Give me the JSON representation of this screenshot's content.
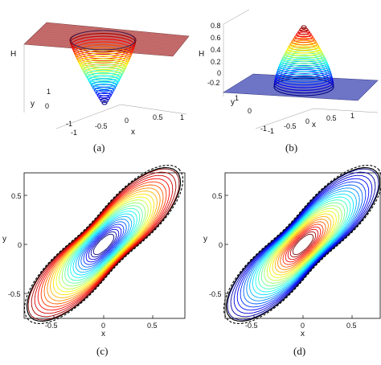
{
  "chart_data": [
    {
      "id": "a",
      "type": "surface",
      "caption": "(a)",
      "xlabel": "x",
      "ylabel": "y",
      "zlabel": "H",
      "x_ticks": [
        "-1",
        "-0.5",
        "0",
        "0.5",
        "1"
      ],
      "y_ticks": [
        "-1",
        "0",
        "1"
      ],
      "xlim": [
        -1,
        1
      ],
      "ylim": [
        -1,
        1
      ],
      "plane_value": 0,
      "well_depth": -0.8,
      "plane_color": "#c56b6b",
      "colormap": "jet"
    },
    {
      "id": "b",
      "type": "surface",
      "caption": "(b)",
      "xlabel": "x",
      "ylabel": "y",
      "zlabel": "H",
      "x_ticks": [
        "-1",
        "-0.5",
        "0",
        "0.5",
        "1"
      ],
      "y_ticks": [
        "-1",
        "0",
        "1"
      ],
      "z_ticks": [
        "-0.2",
        "0",
        "0.2",
        "0.4",
        "0.6",
        "0.8"
      ],
      "zlim": [
        -0.2,
        0.8
      ],
      "plane_value": 0,
      "peak_height": 0.8,
      "plane_color": "#6e74c6",
      "colormap": "jet"
    },
    {
      "id": "c",
      "type": "contour",
      "caption": "(c)",
      "xlabel": "x",
      "ylabel": "y",
      "x_ticks": [
        "-0.5",
        "0",
        "0.5"
      ],
      "y_ticks": [
        "0.5",
        "0",
        "-0.5"
      ],
      "xlim": [
        -0.8,
        0.7
      ],
      "ylim": [
        -0.75,
        0.75
      ],
      "levels": 24,
      "color_order": "red outer to blue inner",
      "boundary": "black solid and dashed outer contours"
    },
    {
      "id": "d",
      "type": "contour",
      "caption": "(d)",
      "xlabel": "x",
      "ylabel": "y",
      "x_ticks": [
        "-0.5",
        "0",
        "0.5"
      ],
      "y_ticks": [
        "0.5",
        "0",
        "-0.5"
      ],
      "xlim": [
        -0.8,
        0.7
      ],
      "ylim": [
        -0.75,
        0.75
      ],
      "levels": 24,
      "color_order": "blue outer to red inner",
      "boundary": "black solid and dashed outer contours"
    }
  ]
}
